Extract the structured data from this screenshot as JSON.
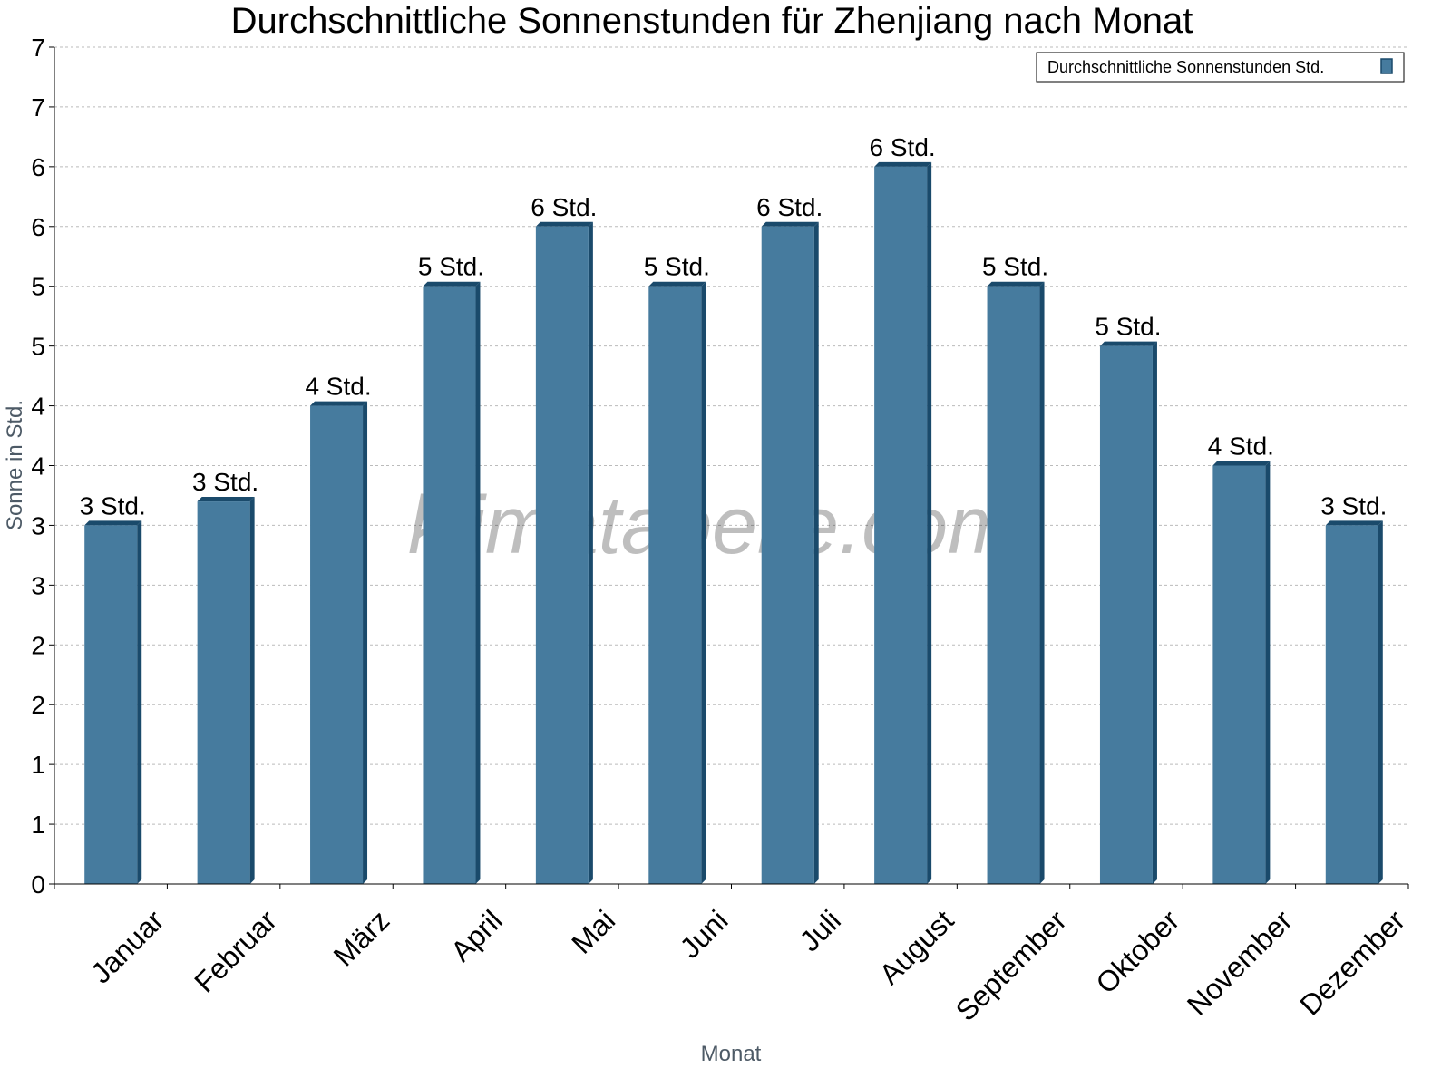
{
  "chart_data": {
    "type": "bar",
    "title": "Durchschnittliche Sonnenstunden für Zhenjiang nach Monat",
    "xlabel": "Monat",
    "ylabel": "Sonne in Std.",
    "ylim": [
      0,
      7
    ],
    "yticks": [
      0,
      0.5,
      1,
      1.5,
      2,
      2.5,
      3,
      3.5,
      4,
      4.5,
      5,
      5.5,
      6,
      6.5,
      7
    ],
    "ytick_labels": [
      "0",
      "1",
      "1",
      "2",
      "2",
      "3",
      "3",
      "4",
      "4",
      "5",
      "5",
      "6",
      "6",
      "7",
      "7"
    ],
    "grid": true,
    "legend_position": "top-right",
    "categories": [
      "Januar",
      "Februar",
      "März",
      "April",
      "Mai",
      "Juni",
      "Juli",
      "August",
      "September",
      "Oktober",
      "November",
      "Dezember"
    ],
    "series": [
      {
        "name": "Durchschnittliche Sonnenstunden Std.",
        "color": "#467b9e",
        "values": [
          3.0,
          3.2,
          4.0,
          5.0,
          5.5,
          5.0,
          5.5,
          6.0,
          5.0,
          4.5,
          3.5,
          3.0
        ],
        "data_labels": [
          "3 Std.",
          "3 Std.",
          "4 Std.",
          "5 Std.",
          "6 Std.",
          "5 Std.",
          "6 Std.",
          "6 Std.",
          "5 Std.",
          "5 Std.",
          "4 Std.",
          "3 Std."
        ]
      }
    ],
    "watermark": "klimatabelle.com"
  }
}
